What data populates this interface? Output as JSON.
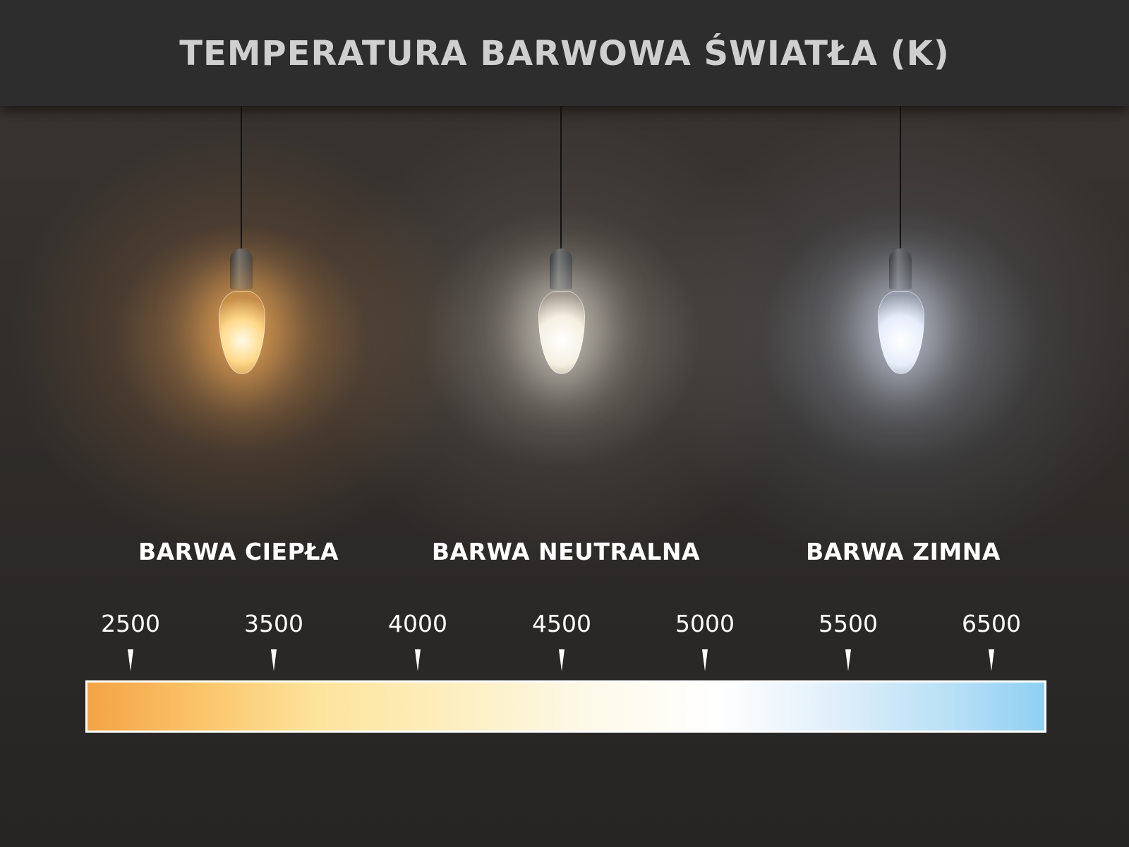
{
  "title": "TEMPERATURA BARWOWA ŚWIATŁA (K)",
  "bulbs": [
    {
      "label": "BARWA CIEPŁA",
      "color": "#ffb066"
    },
    {
      "label": "BARWA NEUTRALNA",
      "color": "#f4efe4"
    },
    {
      "label": "BARWA ZIMNA",
      "color": "#dfe8fa"
    }
  ],
  "scale": {
    "ticks": [
      "2500",
      "3500",
      "4000",
      "4500",
      "5000",
      "5500",
      "6500"
    ],
    "gradient_colors": [
      "#f3a344",
      "#fde49c",
      "#ffffff",
      "#8fd0f3"
    ]
  }
}
